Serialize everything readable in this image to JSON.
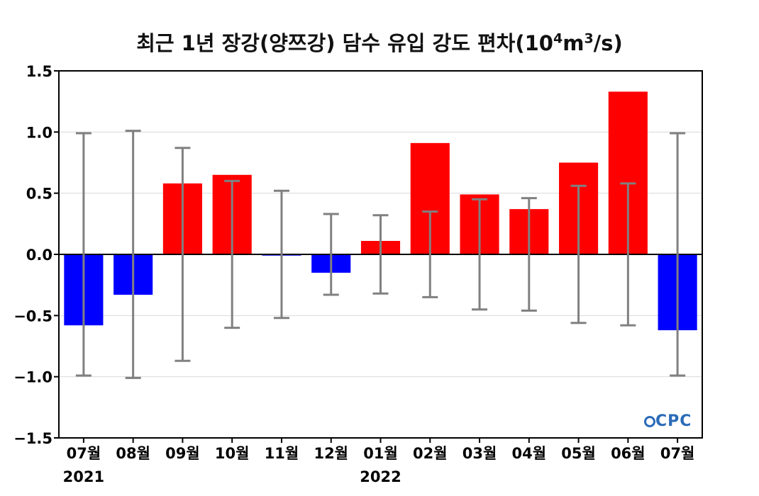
{
  "chart_data": {
    "type": "bar",
    "title_parts": {
      "prefix": "최근 1년 장강(양쯔강) 담수 유입 강도 편차(10",
      "sup1": "4",
      "mid": "m",
      "sup2": "3",
      "suffix": "/s)"
    },
    "categories": [
      "07월",
      "08월",
      "09월",
      "10월",
      "11월",
      "12월",
      "01월",
      "02월",
      "03월",
      "04월",
      "05월",
      "06월",
      "07월"
    ],
    "year_labels": [
      {
        "index": 0,
        "label": "2021"
      },
      {
        "index": 6,
        "label": "2022"
      }
    ],
    "values": [
      -0.58,
      -0.33,
      0.58,
      0.65,
      -0.01,
      -0.15,
      0.11,
      0.91,
      0.49,
      0.37,
      0.75,
      1.33,
      -0.62
    ],
    "error_bars": [
      0.99,
      1.01,
      0.87,
      0.6,
      0.52,
      0.33,
      0.32,
      0.35,
      0.45,
      0.46,
      0.56,
      0.58,
      0.99
    ],
    "ylim": [
      -1.5,
      1.5
    ],
    "yticks": [
      -1.5,
      -1.0,
      -0.5,
      0.0,
      0.5,
      1.0,
      1.5
    ],
    "ytick_labels": [
      "−1.5",
      "−1.0",
      "−0.5",
      "0.0",
      "0.5",
      "1.0",
      "1.5"
    ],
    "grid": true,
    "colors": {
      "positive": "#ff0000",
      "negative": "#0000ff",
      "error_bar": "#808080",
      "grid": "#d9d9d9"
    }
  },
  "logo": {
    "text": "CPC"
  }
}
